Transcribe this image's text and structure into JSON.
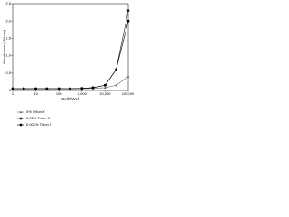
{
  "chart_data": {
    "type": "line",
    "x_label": "Cells/Well",
    "y_label": "Absorbance (490 nm)",
    "x": [
      1,
      3,
      10,
      30,
      100,
      300,
      1000,
      3000,
      10000,
      30000,
      100000
    ],
    "xscale": "log",
    "xlim": [
      1,
      100000
    ],
    "xticks": [
      1,
      10,
      100,
      {
        "value": 1000,
        "label": "1,000"
      },
      {
        "value": 10000,
        "label": "10,000"
      },
      {
        "value": 100000,
        "label": "100,000"
      }
    ],
    "ylim": [
      0,
      2.5
    ],
    "yticks": [
      0,
      0.5,
      {
        "value": 1,
        "label": "1.0"
      },
      1.5,
      {
        "value": 2,
        "label": "2.0"
      },
      2.5
    ],
    "grid": false,
    "legend": "lower-left",
    "series": [
      {
        "name": "0% Triton X",
        "color": "#666666",
        "marker": "triangle",
        "values": [
          0.05,
          0.05,
          0.05,
          0.05,
          0.05,
          0.05,
          0.05,
          0.06,
          0.08,
          0.15,
          0.4
        ]
      },
      {
        "name": "0.01% Triton X",
        "color": "#222222",
        "marker": "square",
        "values": [
          0.05,
          0.05,
          0.05,
          0.05,
          0.05,
          0.05,
          0.06,
          0.08,
          0.15,
          0.6,
          2.3
        ]
      },
      {
        "name": "0.001% Triton X",
        "color": "#000000",
        "marker": "circle",
        "values": [
          0.05,
          0.05,
          0.05,
          0.05,
          0.05,
          0.05,
          0.06,
          0.08,
          0.15,
          0.6,
          2.0
        ]
      }
    ]
  }
}
